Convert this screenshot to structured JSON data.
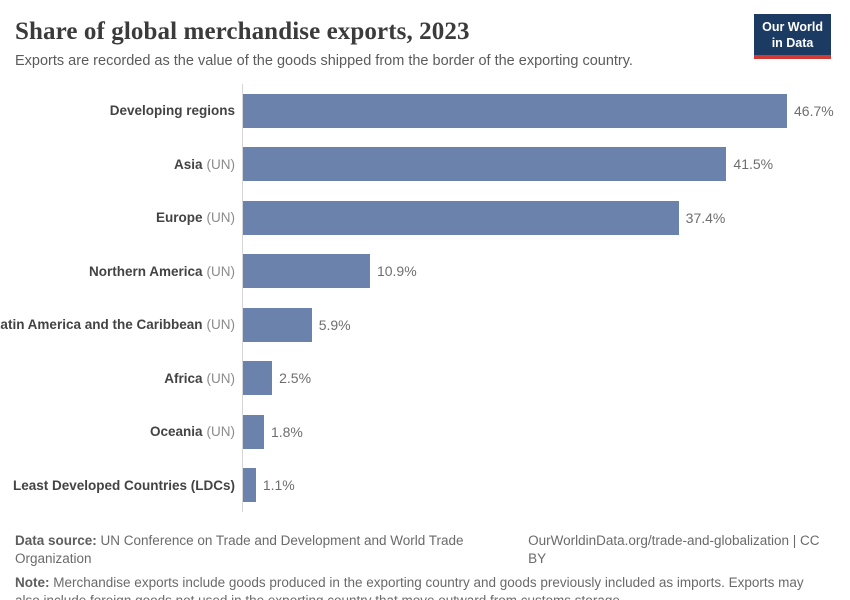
{
  "header": {
    "title": "Share of global merchandise exports, 2023",
    "subtitle": "Exports are recorded as the value of the goods shipped from the border of the exporting country.",
    "logo_line1": "Our World",
    "logo_line2": "in Data"
  },
  "chart_data": {
    "type": "bar",
    "orientation": "horizontal",
    "title": "Share of global merchandise exports, 2023",
    "unit": "%",
    "categories": [
      "Developing regions",
      "Asia (UN)",
      "Europe (UN)",
      "Northern America (UN)",
      "Latin America and the Caribbean (UN)",
      "Africa (UN)",
      "Oceania (UN)",
      "Least Developed Countries (LDCs)"
    ],
    "values": [
      46.7,
      41.5,
      37.4,
      10.9,
      5.9,
      2.5,
      1.8,
      1.1
    ],
    "value_labels": [
      "46.7%",
      "41.5%",
      "37.4%",
      "10.9%",
      "5.9%",
      "2.5%",
      "1.8%",
      "1.1%"
    ],
    "muted_suffix": "(UN)",
    "xlim": [
      0,
      51
    ],
    "grid": false,
    "legend": null,
    "bar_color": "#6b83ac",
    "axis_color": "#d6d6d6"
  },
  "footer": {
    "data_source_label": "Data source:",
    "data_source": "UN Conference on Trade and Development and World Trade Organization",
    "link": "OurWorldinData.org/trade-and-globalization | CC BY",
    "note_label": "Note:",
    "note": "Merchandise exports include goods produced in the exporting country and goods previously included as imports. Exports may also include foreign goods not used in the exporting country that move outward from customs storage."
  }
}
